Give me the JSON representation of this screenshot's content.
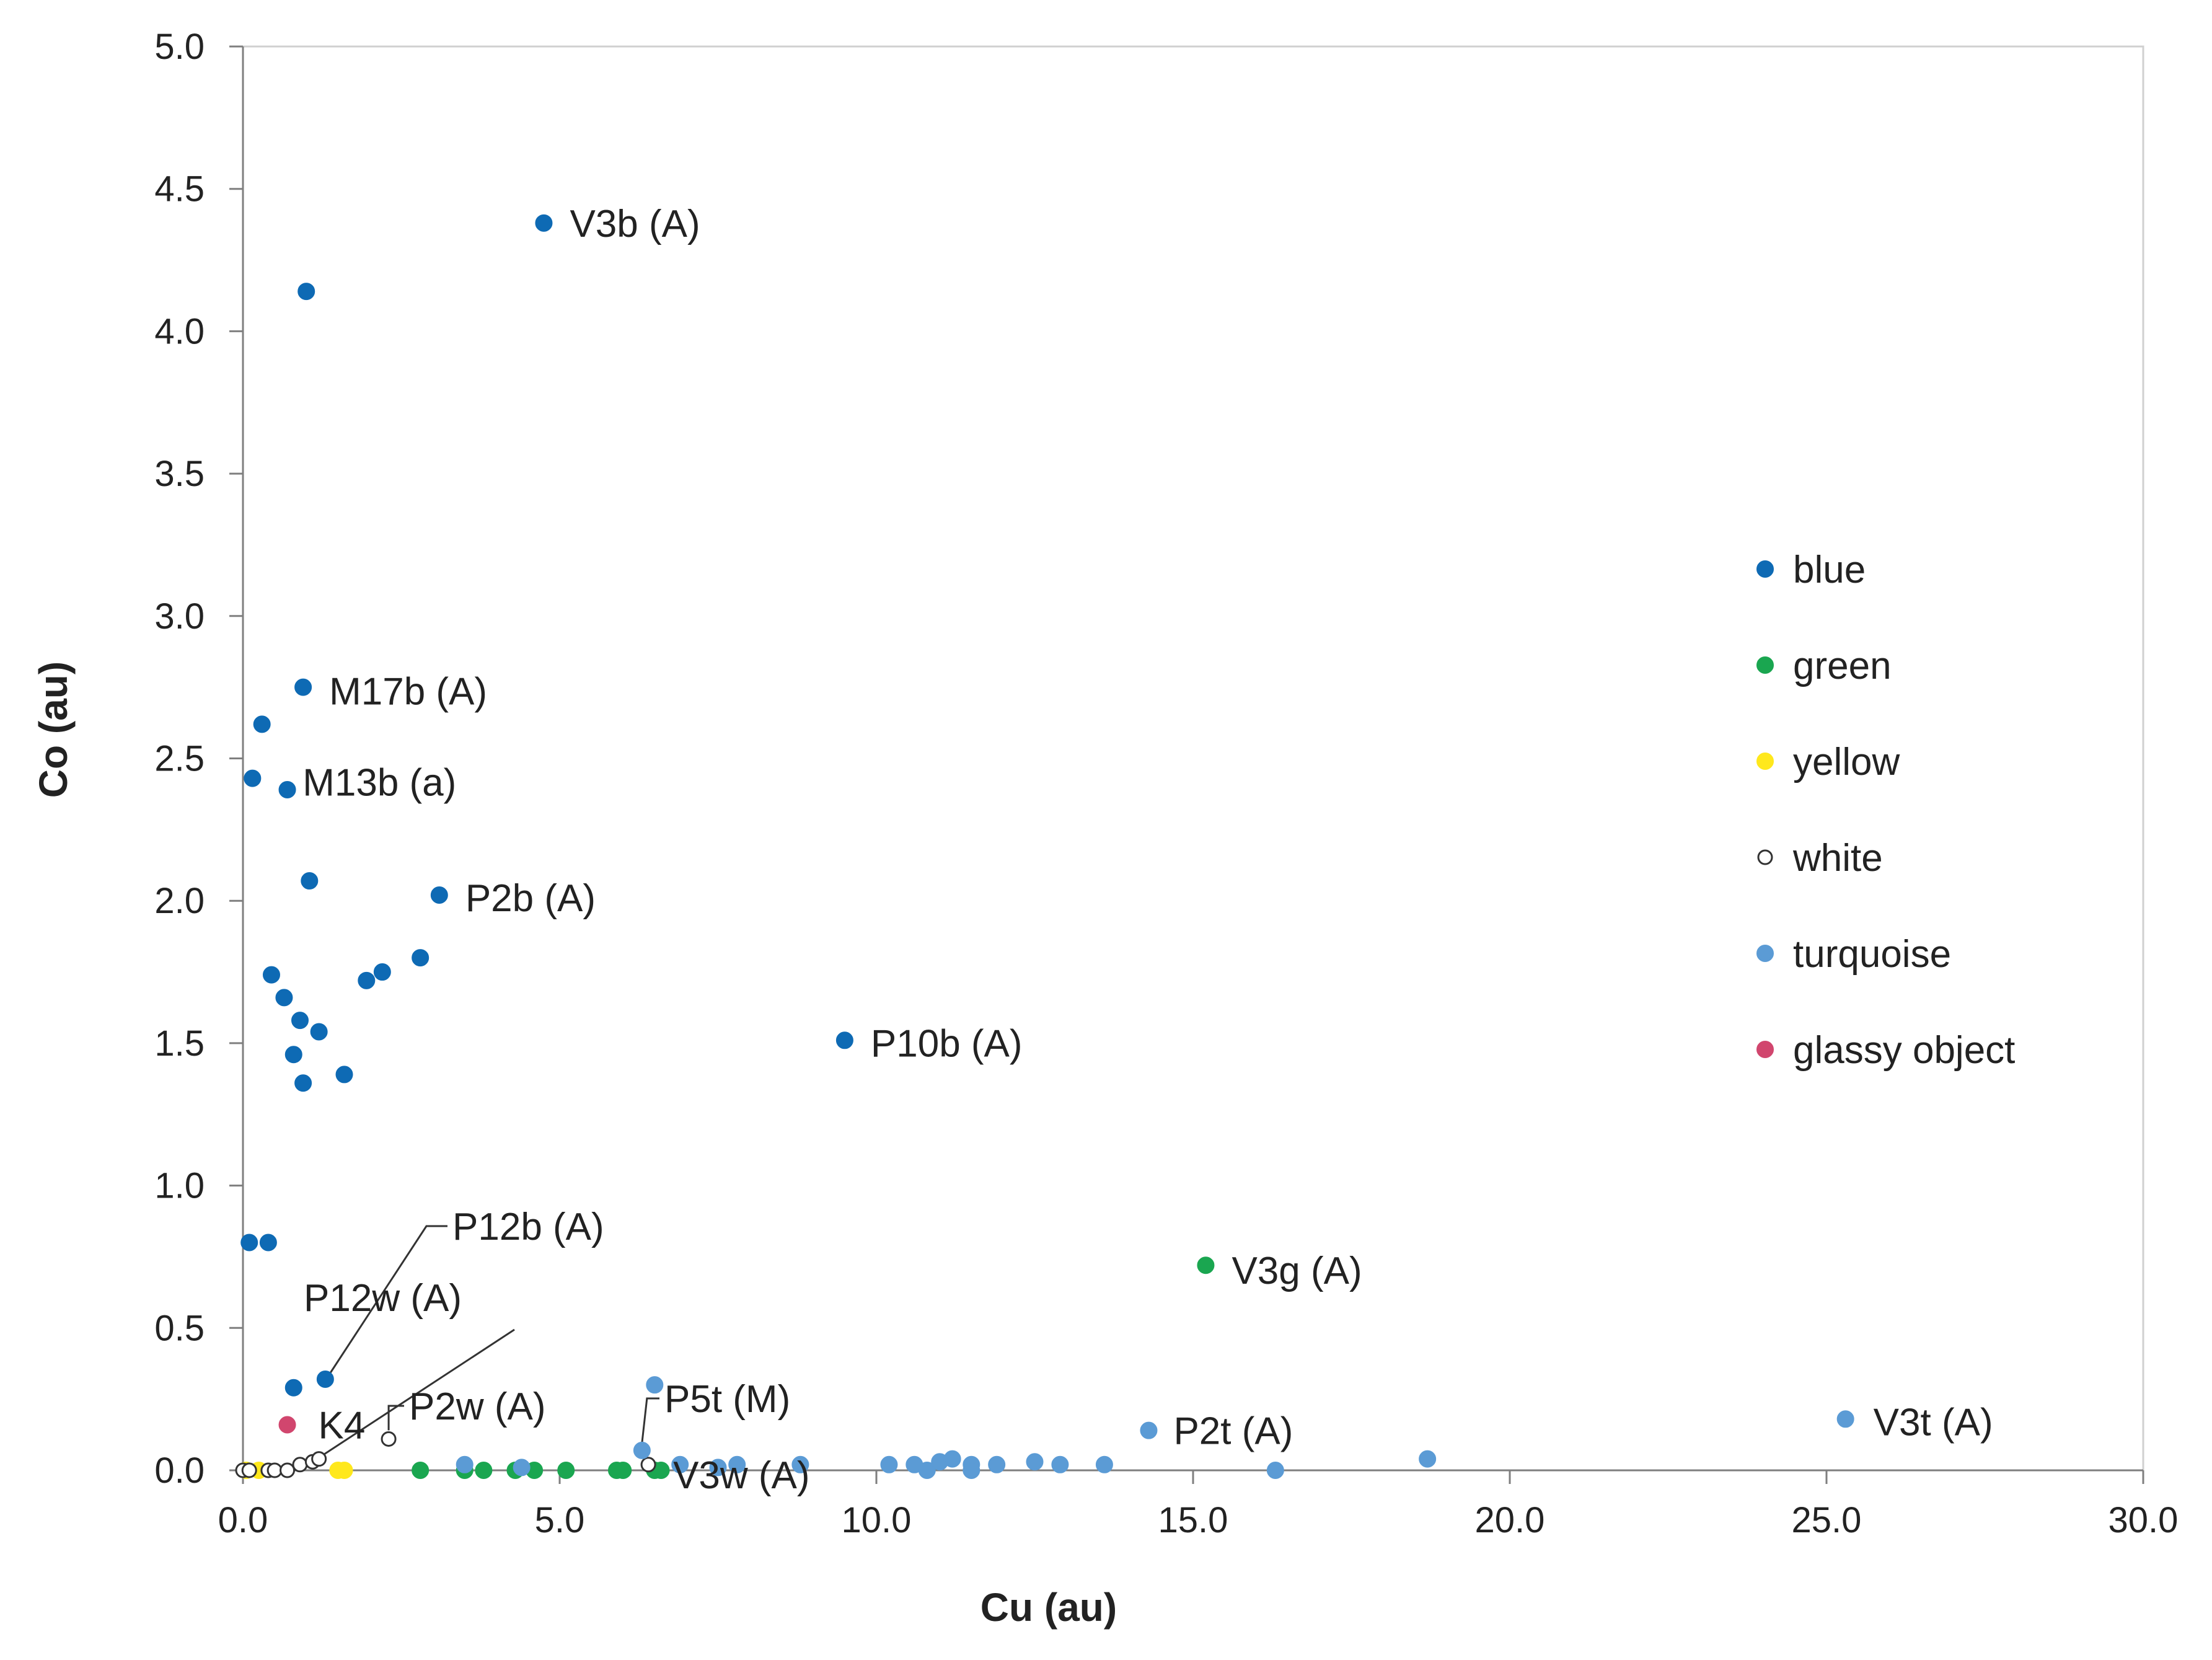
{
  "chart_data": {
    "type": "scatter",
    "title": "",
    "xlabel": "Cu (au)",
    "ylabel": "Co (au)",
    "xlim": [
      0,
      30
    ],
    "ylim": [
      0,
      5
    ],
    "x_ticks": [
      "0.0",
      "5.0",
      "10.0",
      "15.0",
      "20.0",
      "25.0",
      "30.0"
    ],
    "y_ticks": [
      "0.0",
      "0.5",
      "1.0",
      "1.5",
      "2.0",
      "2.5",
      "3.0",
      "3.5",
      "4.0",
      "4.5",
      "5.0"
    ],
    "legend_position": "right",
    "series": [
      {
        "name": "blue",
        "color": "#0e6ab4",
        "marker": "filled",
        "points": [
          [
            4.75,
            4.38
          ],
          [
            1.0,
            4.14
          ],
          [
            0.95,
            2.75
          ],
          [
            0.3,
            2.62
          ],
          [
            0.15,
            2.43
          ],
          [
            0.7,
            2.39
          ],
          [
            1.05,
            2.07
          ],
          [
            3.1,
            2.02
          ],
          [
            0.45,
            1.74
          ],
          [
            2.2,
            1.75
          ],
          [
            2.8,
            1.8
          ],
          [
            1.95,
            1.72
          ],
          [
            0.65,
            1.66
          ],
          [
            0.9,
            1.58
          ],
          [
            1.2,
            1.54
          ],
          [
            0.8,
            1.46
          ],
          [
            1.6,
            1.39
          ],
          [
            0.95,
            1.36
          ],
          [
            9.5,
            1.51
          ],
          [
            0.1,
            0.8
          ],
          [
            0.4,
            0.8
          ],
          [
            1.3,
            0.32
          ],
          [
            0.8,
            0.29
          ]
        ]
      },
      {
        "name": "green",
        "color": "#1aa650",
        "marker": "filled",
        "points": [
          [
            15.2,
            0.72
          ],
          [
            2.8,
            0.0
          ],
          [
            3.8,
            0.0
          ],
          [
            4.3,
            0.0
          ],
          [
            4.6,
            0.0
          ],
          [
            5.1,
            0.0
          ],
          [
            5.9,
            0.0
          ],
          [
            6.0,
            0.0
          ],
          [
            6.5,
            0.0
          ],
          [
            6.6,
            0.0
          ],
          [
            3.5,
            0.0
          ]
        ]
      },
      {
        "name": "yellow",
        "color": "#ffe81c",
        "marker": "filled",
        "points": [
          [
            0.05,
            0.0
          ],
          [
            0.25,
            0.0
          ],
          [
            1.5,
            0.0
          ],
          [
            1.6,
            0.0
          ]
        ]
      },
      {
        "name": "white",
        "color": "#ffffff",
        "marker": "hollow",
        "points": [
          [
            0.0,
            0.0
          ],
          [
            0.1,
            0.0
          ],
          [
            0.4,
            0.0
          ],
          [
            0.5,
            0.0
          ],
          [
            0.7,
            0.0
          ],
          [
            0.9,
            0.02
          ],
          [
            1.1,
            0.03
          ],
          [
            1.2,
            0.04
          ],
          [
            2.3,
            0.11
          ],
          [
            6.4,
            0.02
          ]
        ]
      },
      {
        "name": "turquoise",
        "color": "#5b9bd5",
        "marker": "filled",
        "points": [
          [
            25.3,
            0.18
          ],
          [
            14.3,
            0.14
          ],
          [
            18.7,
            0.04
          ],
          [
            16.3,
            0.0
          ],
          [
            6.5,
            0.3
          ],
          [
            6.3,
            0.07
          ],
          [
            3.5,
            0.02
          ],
          [
            4.4,
            0.01
          ],
          [
            7.8,
            0.02
          ],
          [
            8.8,
            0.02
          ],
          [
            10.2,
            0.02
          ],
          [
            10.6,
            0.02
          ],
          [
            10.8,
            0.0
          ],
          [
            11.0,
            0.03
          ],
          [
            11.2,
            0.04
          ],
          [
            11.5,
            0.02
          ],
          [
            11.5,
            0.0
          ],
          [
            11.9,
            0.02
          ],
          [
            12.5,
            0.03
          ],
          [
            12.9,
            0.02
          ],
          [
            13.6,
            0.02
          ],
          [
            7.5,
            0.01
          ],
          [
            6.9,
            0.02
          ]
        ]
      },
      {
        "name": "glassy object",
        "color": "#d1466e",
        "marker": "filled",
        "points": [
          [
            0.7,
            0.16
          ]
        ]
      }
    ],
    "annotations": [
      {
        "text": "V3b (A)",
        "x": 4.75,
        "y": 4.38,
        "leader": false
      },
      {
        "text": "M17b (A)",
        "x": 0.95,
        "y": 2.75,
        "leader": false
      },
      {
        "text": "M13b (a)",
        "x": 0.55,
        "y": 2.43,
        "leader": false
      },
      {
        "text": "P2b (A)",
        "x": 3.1,
        "y": 2.02,
        "leader": false
      },
      {
        "text": "P10b (A)",
        "x": 9.5,
        "y": 1.51,
        "leader": false
      },
      {
        "text": "V3g (A)",
        "x": 15.2,
        "y": 0.72,
        "leader": false
      },
      {
        "text": "P12b (A)",
        "x": 1.3,
        "y": 0.32,
        "leader": true
      },
      {
        "text": "P12w (A)",
        "x": 1.2,
        "y": 0.04,
        "leader": true
      },
      {
        "text": "K4",
        "x": 0.7,
        "y": 0.16,
        "leader": false
      },
      {
        "text": "P2w (A)",
        "x": 2.3,
        "y": 0.11,
        "leader": true
      },
      {
        "text": "P5t (M)",
        "x": 6.3,
        "y": 0.07,
        "leader": true
      },
      {
        "text": "V3w (A)",
        "x": 6.4,
        "y": 0.02,
        "leader": false
      },
      {
        "text": "P2t (A)",
        "x": 14.3,
        "y": 0.14,
        "leader": false
      },
      {
        "text": "V3t (A)",
        "x": 25.3,
        "y": 0.18,
        "leader": false
      }
    ]
  }
}
